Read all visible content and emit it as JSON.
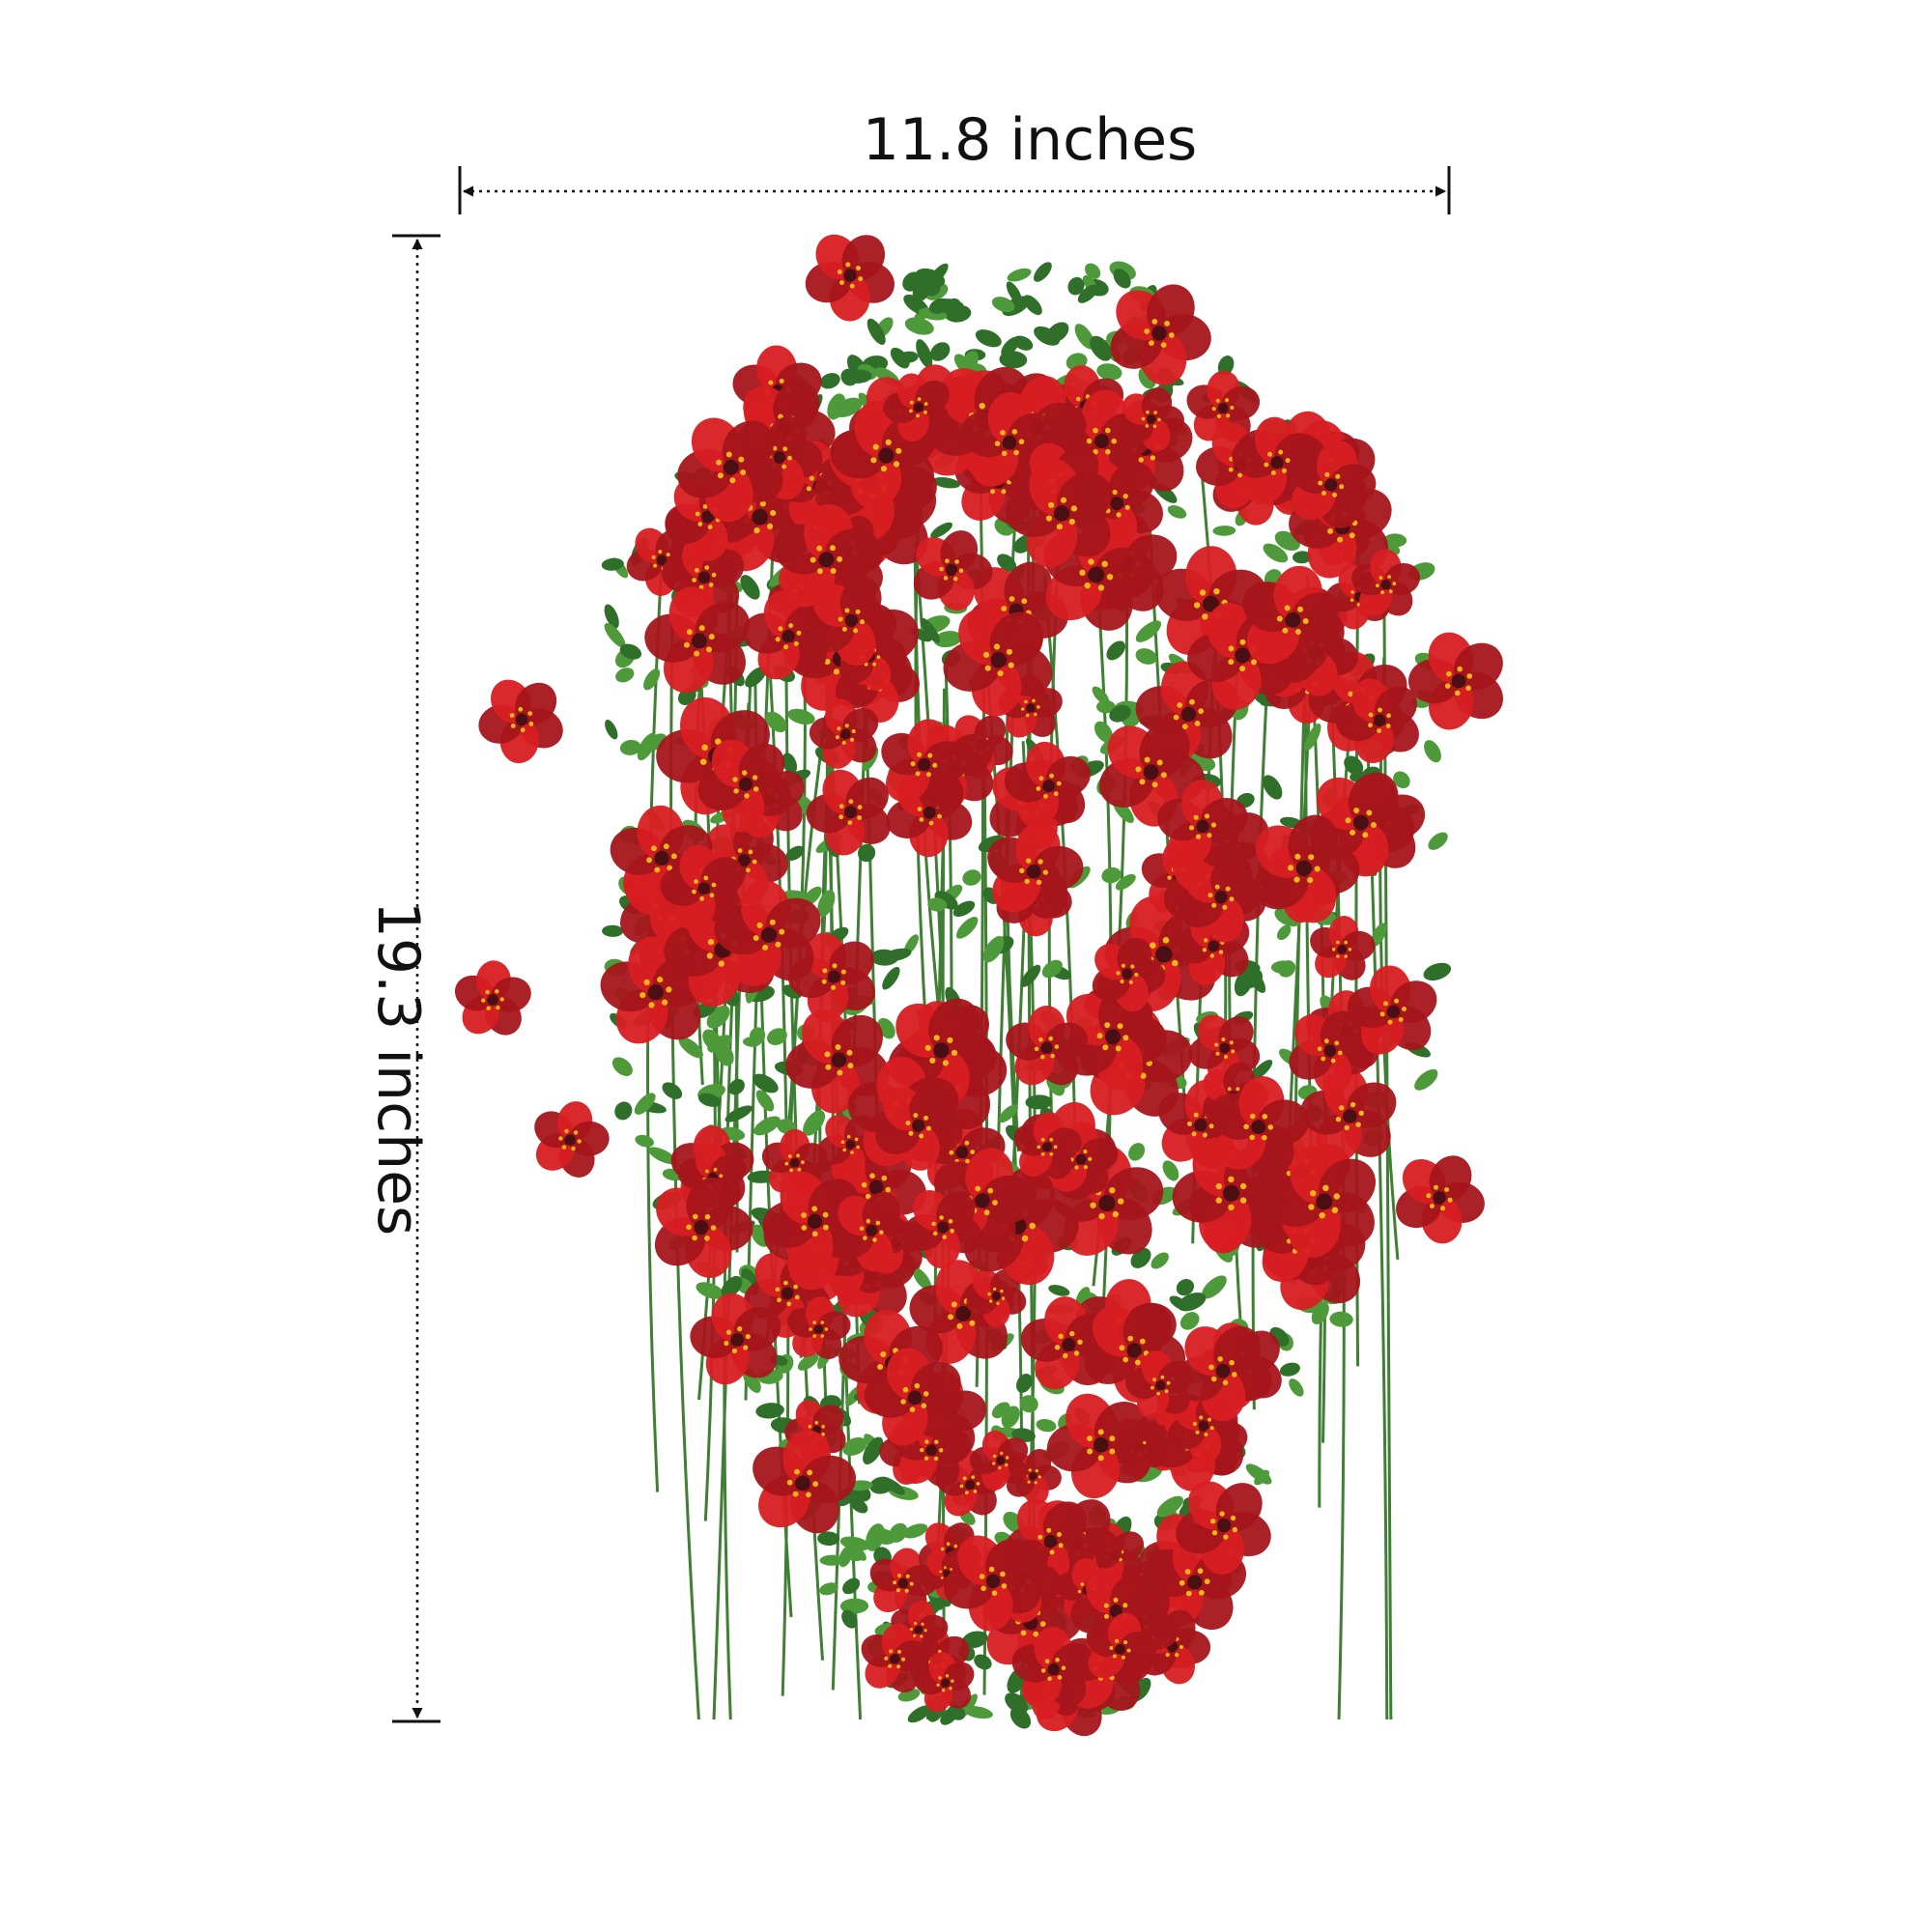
{
  "dimensions": {
    "width_label": "11.8 inches",
    "height_label": "19.3 inches"
  },
  "colors": {
    "background": "#ffffff",
    "dimension_line": "#111111",
    "petal": "#d81e22",
    "petal_dark": "#a5151b",
    "flower_center": "#4a0f12",
    "stamen": "#f2b51c",
    "leaf": "#4e9a3a",
    "leaf_dark": "#2f6f2a",
    "stem": "#3f7f34"
  },
  "subject": "hanging red flower bush"
}
